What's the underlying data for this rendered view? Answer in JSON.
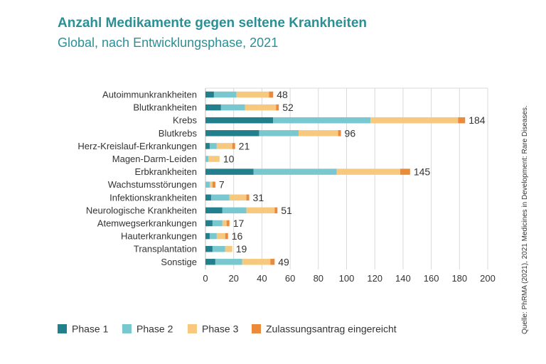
{
  "title": "Anzahl Medikamente gegen seltene Krankheiten",
  "subtitle": "Global, nach Entwicklungsphase, 2021",
  "source": "Quelle: PhRMA (2021), 2021 Medicines in Development: Rare Diseases.",
  "colors": {
    "title": "#2b8f96",
    "phase1": "#227f8c",
    "phase2": "#79c8d0",
    "phase3": "#f7c97e",
    "submitted": "#ec8a3c",
    "grid": "#d9d9d9",
    "text": "#333333"
  },
  "chart_data": {
    "type": "bar",
    "orientation": "horizontal",
    "stacked": true,
    "title": "Anzahl Medikamente gegen seltene Krankheiten",
    "subtitle": "Global, nach Entwicklungsphase, 2021",
    "xlabel": "",
    "ylabel": "",
    "xlim": [
      0,
      200
    ],
    "xticks": [
      0,
      20,
      40,
      60,
      80,
      100,
      120,
      140,
      160,
      180,
      200
    ],
    "grid": true,
    "legend_position": "bottom",
    "categories": [
      "Autoimmunkrankheiten",
      "Blutkrankheiten",
      "Krebs",
      "Blutkrebs",
      "Herz-Kreislauf-Erkrankungen",
      "Magen-Darm-Leiden",
      "Erbkrankheiten",
      "Wachstumsstörungen",
      "Infektionskrankheiten",
      "Neurologische Krankheiten",
      "Atemwegserkrankungen",
      "Hauterkrankungen",
      "Transplantation",
      "Sonstige"
    ],
    "totals": [
      48,
      52,
      184,
      96,
      21,
      10,
      145,
      7,
      31,
      51,
      17,
      16,
      19,
      49
    ],
    "series": [
      {
        "name": "Phase 1",
        "color": "#227f8c",
        "values": [
          6,
          11,
          48,
          38,
          3,
          0,
          34,
          0,
          4,
          12,
          5,
          3,
          5,
          7
        ]
      },
      {
        "name": "Phase 2",
        "color": "#79c8d0",
        "values": [
          16,
          17,
          69,
          28,
          5,
          2,
          59,
          3,
          13,
          17,
          7,
          5,
          9,
          19
        ]
      },
      {
        "name": "Phase 3",
        "color": "#f7c97e",
        "values": [
          23,
          22,
          62,
          28,
          11,
          8,
          45,
          2,
          12,
          20,
          3,
          6,
          5,
          20
        ]
      },
      {
        "name": "Zulassungsantrag eingereicht",
        "color": "#ec8a3c",
        "values": [
          3,
          2,
          5,
          2,
          2,
          0,
          7,
          2,
          2,
          2,
          2,
          2,
          0,
          3
        ]
      }
    ]
  }
}
